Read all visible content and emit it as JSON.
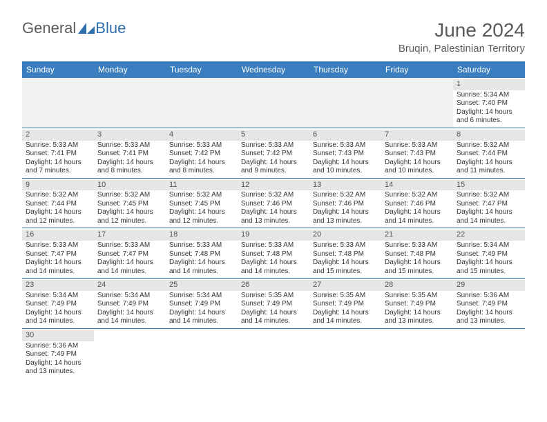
{
  "brand": {
    "part1": "General",
    "part2": "Blue"
  },
  "header": {
    "month_title": "June 2024",
    "location": "Bruqin, Palestinian Territory"
  },
  "colors": {
    "header_bar": "#3a7ebf",
    "daynum_bg": "#e6e6e6",
    "empty_bg": "#f2f2f2",
    "divider": "#2f6fb0",
    "text": "#333333",
    "brand_gray": "#5a5a5a",
    "brand_blue": "#2f6fb0"
  },
  "weekdays": [
    "Sunday",
    "Monday",
    "Tuesday",
    "Wednesday",
    "Thursday",
    "Friday",
    "Saturday"
  ],
  "weeks": [
    [
      null,
      null,
      null,
      null,
      null,
      null,
      {
        "n": "1",
        "sr": "Sunrise: 5:34 AM",
        "ss": "Sunset: 7:40 PM",
        "dl1": "Daylight: 14 hours",
        "dl2": "and 6 minutes."
      }
    ],
    [
      {
        "n": "2",
        "sr": "Sunrise: 5:33 AM",
        "ss": "Sunset: 7:41 PM",
        "dl1": "Daylight: 14 hours",
        "dl2": "and 7 minutes."
      },
      {
        "n": "3",
        "sr": "Sunrise: 5:33 AM",
        "ss": "Sunset: 7:41 PM",
        "dl1": "Daylight: 14 hours",
        "dl2": "and 8 minutes."
      },
      {
        "n": "4",
        "sr": "Sunrise: 5:33 AM",
        "ss": "Sunset: 7:42 PM",
        "dl1": "Daylight: 14 hours",
        "dl2": "and 8 minutes."
      },
      {
        "n": "5",
        "sr": "Sunrise: 5:33 AM",
        "ss": "Sunset: 7:42 PM",
        "dl1": "Daylight: 14 hours",
        "dl2": "and 9 minutes."
      },
      {
        "n": "6",
        "sr": "Sunrise: 5:33 AM",
        "ss": "Sunset: 7:43 PM",
        "dl1": "Daylight: 14 hours",
        "dl2": "and 10 minutes."
      },
      {
        "n": "7",
        "sr": "Sunrise: 5:33 AM",
        "ss": "Sunset: 7:43 PM",
        "dl1": "Daylight: 14 hours",
        "dl2": "and 10 minutes."
      },
      {
        "n": "8",
        "sr": "Sunrise: 5:32 AM",
        "ss": "Sunset: 7:44 PM",
        "dl1": "Daylight: 14 hours",
        "dl2": "and 11 minutes."
      }
    ],
    [
      {
        "n": "9",
        "sr": "Sunrise: 5:32 AM",
        "ss": "Sunset: 7:44 PM",
        "dl1": "Daylight: 14 hours",
        "dl2": "and 12 minutes."
      },
      {
        "n": "10",
        "sr": "Sunrise: 5:32 AM",
        "ss": "Sunset: 7:45 PM",
        "dl1": "Daylight: 14 hours",
        "dl2": "and 12 minutes."
      },
      {
        "n": "11",
        "sr": "Sunrise: 5:32 AM",
        "ss": "Sunset: 7:45 PM",
        "dl1": "Daylight: 14 hours",
        "dl2": "and 12 minutes."
      },
      {
        "n": "12",
        "sr": "Sunrise: 5:32 AM",
        "ss": "Sunset: 7:46 PM",
        "dl1": "Daylight: 14 hours",
        "dl2": "and 13 minutes."
      },
      {
        "n": "13",
        "sr": "Sunrise: 5:32 AM",
        "ss": "Sunset: 7:46 PM",
        "dl1": "Daylight: 14 hours",
        "dl2": "and 13 minutes."
      },
      {
        "n": "14",
        "sr": "Sunrise: 5:32 AM",
        "ss": "Sunset: 7:46 PM",
        "dl1": "Daylight: 14 hours",
        "dl2": "and 14 minutes."
      },
      {
        "n": "15",
        "sr": "Sunrise: 5:32 AM",
        "ss": "Sunset: 7:47 PM",
        "dl1": "Daylight: 14 hours",
        "dl2": "and 14 minutes."
      }
    ],
    [
      {
        "n": "16",
        "sr": "Sunrise: 5:33 AM",
        "ss": "Sunset: 7:47 PM",
        "dl1": "Daylight: 14 hours",
        "dl2": "and 14 minutes."
      },
      {
        "n": "17",
        "sr": "Sunrise: 5:33 AM",
        "ss": "Sunset: 7:47 PM",
        "dl1": "Daylight: 14 hours",
        "dl2": "and 14 minutes."
      },
      {
        "n": "18",
        "sr": "Sunrise: 5:33 AM",
        "ss": "Sunset: 7:48 PM",
        "dl1": "Daylight: 14 hours",
        "dl2": "and 14 minutes."
      },
      {
        "n": "19",
        "sr": "Sunrise: 5:33 AM",
        "ss": "Sunset: 7:48 PM",
        "dl1": "Daylight: 14 hours",
        "dl2": "and 14 minutes."
      },
      {
        "n": "20",
        "sr": "Sunrise: 5:33 AM",
        "ss": "Sunset: 7:48 PM",
        "dl1": "Daylight: 14 hours",
        "dl2": "and 15 minutes."
      },
      {
        "n": "21",
        "sr": "Sunrise: 5:33 AM",
        "ss": "Sunset: 7:48 PM",
        "dl1": "Daylight: 14 hours",
        "dl2": "and 15 minutes."
      },
      {
        "n": "22",
        "sr": "Sunrise: 5:34 AM",
        "ss": "Sunset: 7:49 PM",
        "dl1": "Daylight: 14 hours",
        "dl2": "and 15 minutes."
      }
    ],
    [
      {
        "n": "23",
        "sr": "Sunrise: 5:34 AM",
        "ss": "Sunset: 7:49 PM",
        "dl1": "Daylight: 14 hours",
        "dl2": "and 14 minutes."
      },
      {
        "n": "24",
        "sr": "Sunrise: 5:34 AM",
        "ss": "Sunset: 7:49 PM",
        "dl1": "Daylight: 14 hours",
        "dl2": "and 14 minutes."
      },
      {
        "n": "25",
        "sr": "Sunrise: 5:34 AM",
        "ss": "Sunset: 7:49 PM",
        "dl1": "Daylight: 14 hours",
        "dl2": "and 14 minutes."
      },
      {
        "n": "26",
        "sr": "Sunrise: 5:35 AM",
        "ss": "Sunset: 7:49 PM",
        "dl1": "Daylight: 14 hours",
        "dl2": "and 14 minutes."
      },
      {
        "n": "27",
        "sr": "Sunrise: 5:35 AM",
        "ss": "Sunset: 7:49 PM",
        "dl1": "Daylight: 14 hours",
        "dl2": "and 14 minutes."
      },
      {
        "n": "28",
        "sr": "Sunrise: 5:35 AM",
        "ss": "Sunset: 7:49 PM",
        "dl1": "Daylight: 14 hours",
        "dl2": "and 13 minutes."
      },
      {
        "n": "29",
        "sr": "Sunrise: 5:36 AM",
        "ss": "Sunset: 7:49 PM",
        "dl1": "Daylight: 14 hours",
        "dl2": "and 13 minutes."
      }
    ],
    [
      {
        "n": "30",
        "sr": "Sunrise: 5:36 AM",
        "ss": "Sunset: 7:49 PM",
        "dl1": "Daylight: 14 hours",
        "dl2": "and 13 minutes."
      },
      null,
      null,
      null,
      null,
      null,
      null
    ]
  ]
}
